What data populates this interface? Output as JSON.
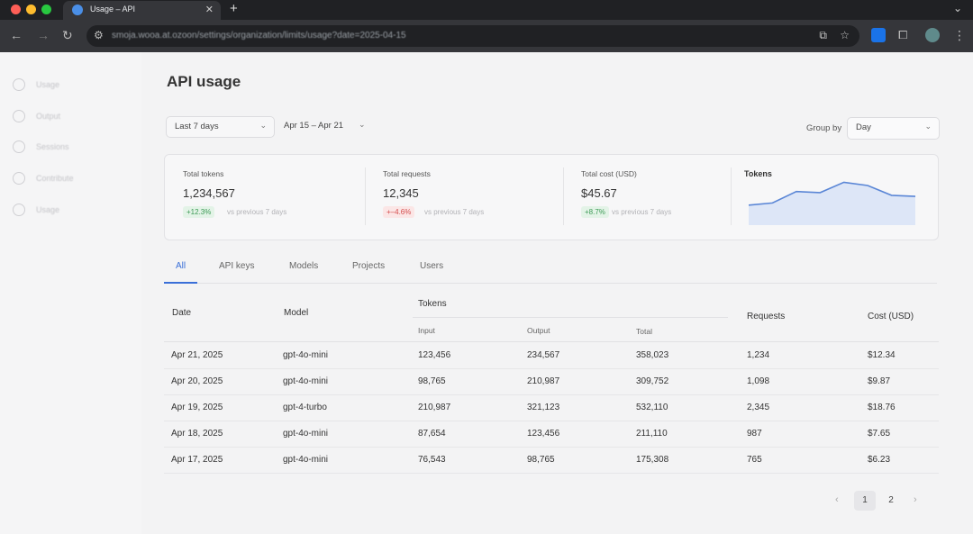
{
  "browser": {
    "tab_title": "Usage – API",
    "new_tab_icon": "plus-icon",
    "url": "smoja.wooa.at.ozoon/settings/organization/limits/usage?date=2025-04-15"
  },
  "sidebar": {
    "items": [
      {
        "label": "Usage",
        "icon": "chart-icon"
      },
      {
        "label": "Output",
        "icon": "output-icon"
      },
      {
        "label": "Sessions",
        "icon": "session-icon"
      },
      {
        "label": "Contribute",
        "icon": "people-icon"
      },
      {
        "label": "Usage",
        "icon": "doc-icon"
      }
    ]
  },
  "header": {
    "title": "API usage"
  },
  "filters": {
    "period": "Last 7 days",
    "date_range": "Apr 15 – Apr 21",
    "group_by_label": "Group by",
    "group_by_value": "Day"
  },
  "summary": {
    "total_tokens": {
      "label": "Total tokens",
      "value": "1,234,567",
      "change": "+12.3%",
      "compare": "vs previous 7 days"
    },
    "total_requests": {
      "label": "Total requests",
      "value": "12,345",
      "change": "+–4.6%",
      "compare": "vs previous 7 days"
    },
    "total_cost": {
      "label": "Total cost (USD)",
      "value": "$45.67",
      "change": "+8.7%",
      "compare": "vs previous 7 days"
    },
    "spark_title": "Tokens",
    "spark_values": [
      30,
      34,
      55,
      53,
      72,
      66,
      48,
      46
    ]
  },
  "colors": {
    "accent": "#3a6fd8",
    "positive_bg": "#e3f3e7",
    "positive_fg": "#3c9a55",
    "negative_bg": "#fbe6e6",
    "negative_fg": "#d44c4c"
  },
  "tabs": [
    {
      "label": "All"
    },
    {
      "label": "API keys"
    },
    {
      "label": "Models"
    },
    {
      "label": "Projects"
    },
    {
      "label": "Users"
    }
  ],
  "table": {
    "headers": {
      "date": "Date",
      "model": "Model",
      "tokens": "Tokens",
      "input": "Input",
      "output": "Output",
      "total": "Total",
      "requests": "Requests",
      "cost": "Cost (USD)"
    },
    "rows": [
      {
        "date": "Apr 21, 2025",
        "model": "gpt-4o-mini",
        "input": "123,456",
        "output": "234,567",
        "total": "358,023",
        "requests": "1,234",
        "cost": "$12.34"
      },
      {
        "date": "Apr 20, 2025",
        "model": "gpt-4o-mini",
        "input": "98,765",
        "output": "210,987",
        "total": "309,752",
        "requests": "1,098",
        "cost": "$9.87"
      },
      {
        "date": "Apr 19, 2025",
        "model": "gpt-4-turbo",
        "input": "210,987",
        "output": "321,123",
        "total": "532,110",
        "requests": "2,345",
        "cost": "$18.76"
      },
      {
        "date": "Apr 18, 2025",
        "model": "gpt-4o-mini",
        "input": "87,654",
        "output": "123,456",
        "total": "211,110",
        "requests": "987",
        "cost": "$7.65"
      },
      {
        "date": "Apr 17, 2025",
        "model": "gpt-4o-mini",
        "input": "76,543",
        "output": "98,765",
        "total": "175,308",
        "requests": "765",
        "cost": "$6.23"
      }
    ]
  },
  "pagination": {
    "pages": [
      "1",
      "2"
    ],
    "current": "1"
  }
}
